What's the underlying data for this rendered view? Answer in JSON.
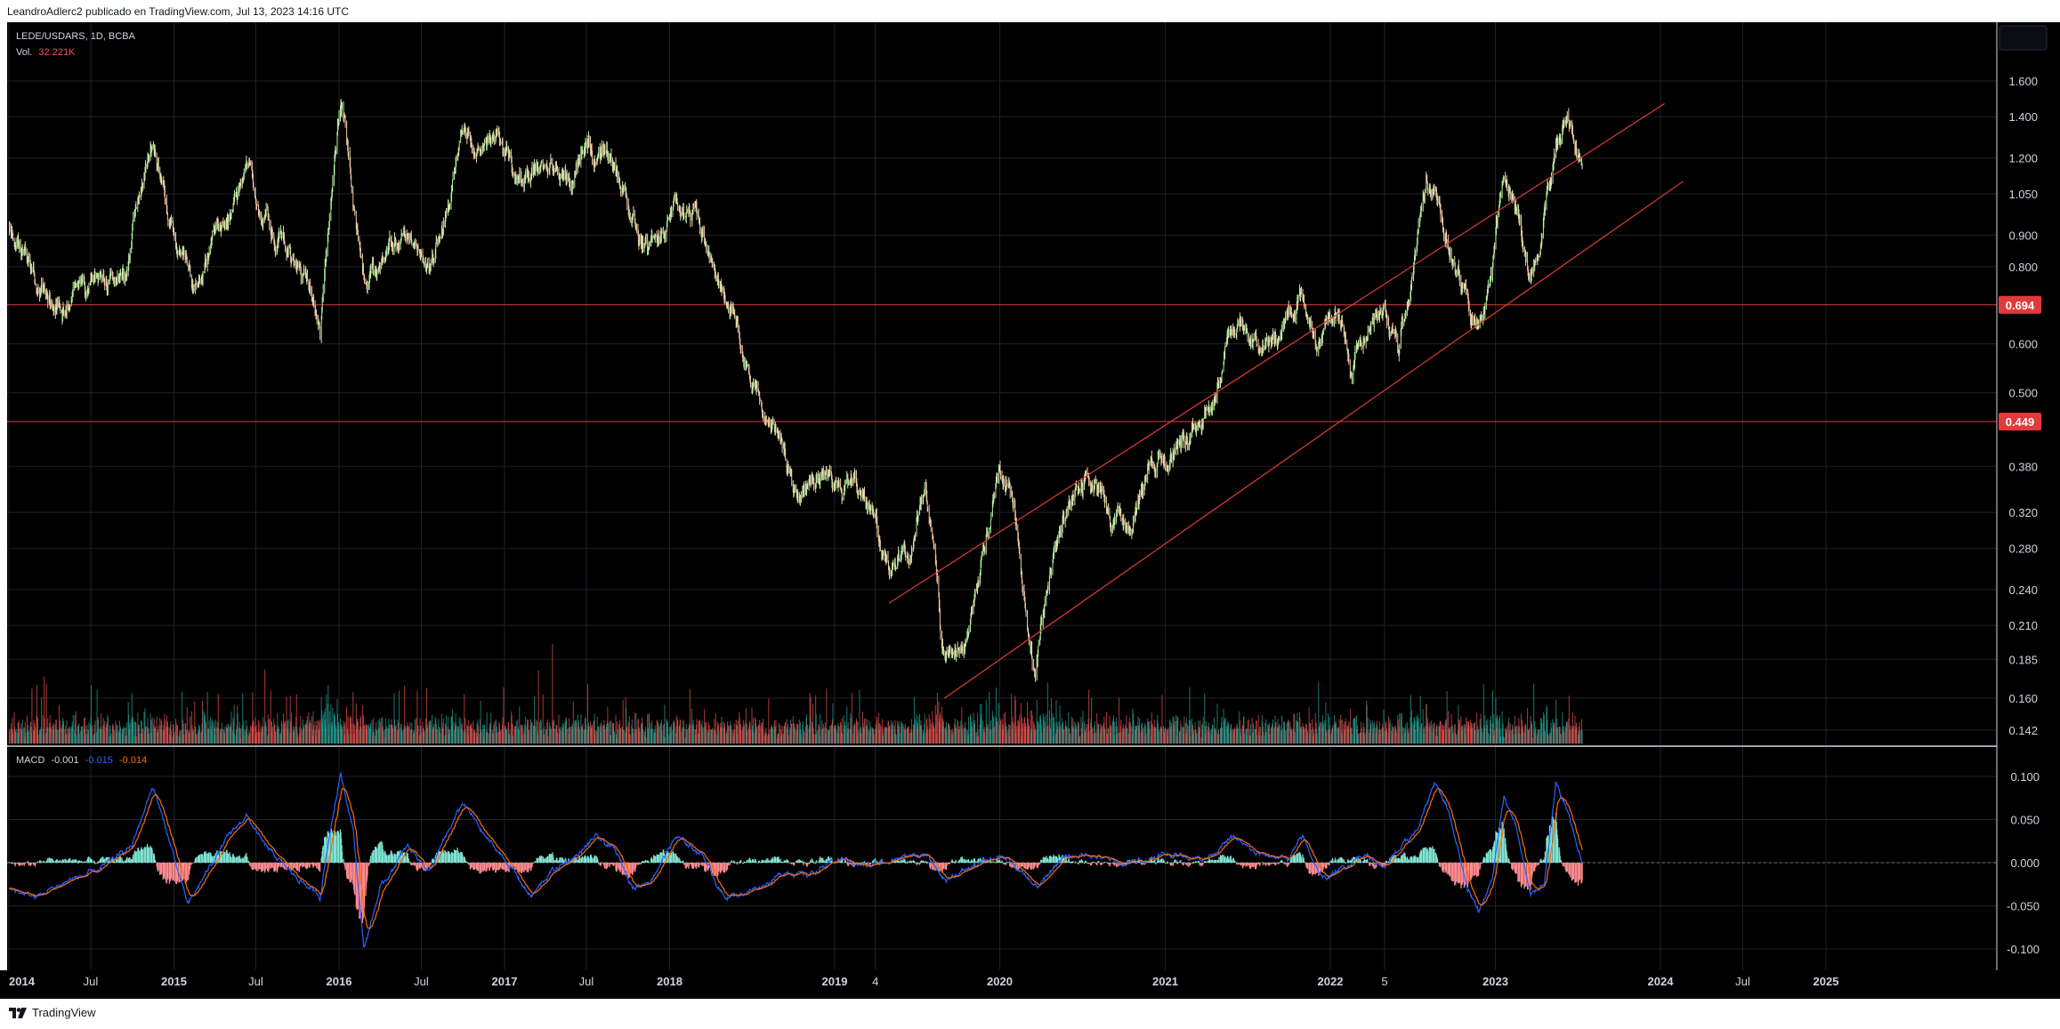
{
  "header": {
    "text": "LeandroAdlerc2 publicado en TradingView.com, Jul 13, 2023 14:16 UTC"
  },
  "legend": {
    "symbol": "LEDE/USDARS, 1D, BCBA",
    "vol_label": "Vol.",
    "vol_value": "32.221K",
    "macd_label": "MACD",
    "macd_value": "-0.001",
    "signal_value": "-0.015",
    "histogram_value": "-0.014"
  },
  "footer": {
    "brand": "TradingView"
  },
  "colors": {
    "background": "#000000",
    "grid": "#1f2129",
    "axis_text": "#d1d4dc",
    "candle_up": "#b9f2a5",
    "candle_down": "#f3c9a6",
    "volume_up": "#26a69a",
    "volume_down": "#ef5350",
    "level_line": "#e03a3a",
    "channel_line": "#e03a3a",
    "macd_line": "#2962ff",
    "signal_line": "#ff6d00",
    "hist_pos": "#7fe3d2",
    "hist_neg": "#ff8a8f",
    "vol_value_color": "#f7525f",
    "macd_value_color": "#d1d4dc",
    "signal_value_color": "#2962ff",
    "hist_value_color": "#ff6d00"
  },
  "chart_data": [
    {
      "type": "candlestick",
      "title": "LEDE/USDARS, 1D, BCBA",
      "y_scale": "log",
      "y_ticks": [
        "1.600",
        "1.400",
        "1.200",
        "1.050",
        "0.900",
        "0.800",
        "0.600",
        "0.500",
        "0.380",
        "0.320",
        "0.280",
        "0.240",
        "0.210",
        "0.185",
        "0.160",
        "0.142"
      ],
      "x_ticks": [
        "2014",
        "Jul",
        "2015",
        "Jul",
        "2016",
        "Jul",
        "2017",
        "Jul",
        "2018",
        "2019",
        "4",
        "2020",
        "2021",
        "2022",
        "5",
        "2023",
        "2024",
        "Jul",
        "2025"
      ],
      "x_tick_dates": [
        "2014-01-01",
        "2014-07-01",
        "2015-01-01",
        "2015-07-01",
        "2016-01-01",
        "2016-07-01",
        "2017-01-01",
        "2017-07-01",
        "2018-01-01",
        "2019-01-01",
        "2019-04-01",
        "2020-01-01",
        "2021-01-01",
        "2022-01-01",
        "2022-05-01",
        "2023-01-01",
        "2024-01-01",
        "2024-07-01",
        "2025-01-01"
      ],
      "price_path": [
        [
          "2014-01-02",
          0.92
        ],
        [
          "2014-03-01",
          0.74
        ],
        [
          "2014-05-01",
          0.68
        ],
        [
          "2014-07-15",
          0.77
        ],
        [
          "2014-09-15",
          0.76
        ],
        [
          "2014-11-10",
          1.3
        ],
        [
          "2014-12-20",
          0.96
        ],
        [
          "2015-01-15",
          0.85
        ],
        [
          "2015-02-15",
          0.7
        ],
        [
          "2015-03-20",
          0.86
        ],
        [
          "2015-05-01",
          0.96
        ],
        [
          "2015-06-10",
          1.15
        ],
        [
          "2015-07-15",
          0.98
        ],
        [
          "2015-09-01",
          0.87
        ],
        [
          "2015-10-20",
          0.79
        ],
        [
          "2015-11-20",
          0.62
        ],
        [
          "2015-12-10",
          0.94
        ],
        [
          "2016-01-05",
          1.48
        ],
        [
          "2016-02-05",
          0.94
        ],
        [
          "2016-03-01",
          0.72
        ],
        [
          "2016-04-20",
          0.86
        ],
        [
          "2016-06-01",
          0.9
        ],
        [
          "2016-07-20",
          0.82
        ],
        [
          "2016-09-01",
          1.05
        ],
        [
          "2016-10-01",
          1.3
        ],
        [
          "2016-11-15",
          1.22
        ],
        [
          "2016-12-15",
          1.28
        ],
        [
          "2017-02-01",
          1.08
        ],
        [
          "2017-04-01",
          1.15
        ],
        [
          "2017-06-01",
          1.1
        ],
        [
          "2017-07-01",
          1.3
        ],
        [
          "2017-08-15",
          1.22
        ],
        [
          "2017-10-01",
          1.0
        ],
        [
          "2017-11-15",
          0.82
        ],
        [
          "2017-12-15",
          0.9
        ],
        [
          "2018-01-15",
          1.05
        ],
        [
          "2018-03-01",
          0.96
        ],
        [
          "2018-04-15",
          0.76
        ],
        [
          "2018-05-15",
          0.7
        ],
        [
          "2018-07-01",
          0.5
        ],
        [
          "2018-08-15",
          0.45
        ],
        [
          "2018-09-15",
          0.4
        ],
        [
          "2018-10-20",
          0.33
        ],
        [
          "2018-11-20",
          0.38
        ],
        [
          "2019-01-01",
          0.35
        ],
        [
          "2019-02-15",
          0.36
        ],
        [
          "2019-04-01",
          0.3
        ],
        [
          "2019-05-01",
          0.26
        ],
        [
          "2019-06-15",
          0.27
        ],
        [
          "2019-07-20",
          0.35
        ],
        [
          "2019-08-10",
          0.28
        ],
        [
          "2019-08-25",
          0.19
        ],
        [
          "2019-10-15",
          0.19
        ],
        [
          "2019-11-20",
          0.26
        ],
        [
          "2020-01-01",
          0.38
        ],
        [
          "2020-02-01",
          0.33
        ],
        [
          "2020-02-20",
          0.25
        ],
        [
          "2020-03-20",
          0.17
        ],
        [
          "2020-04-20",
          0.26
        ],
        [
          "2020-06-01",
          0.33
        ],
        [
          "2020-07-15",
          0.37
        ],
        [
          "2020-09-01",
          0.32
        ],
        [
          "2020-10-15",
          0.3
        ],
        [
          "2020-12-01",
          0.38
        ],
        [
          "2021-01-15",
          0.4
        ],
        [
          "2021-03-15",
          0.44
        ],
        [
          "2021-04-15",
          0.49
        ],
        [
          "2021-05-15",
          0.6
        ],
        [
          "2021-06-15",
          0.62
        ],
        [
          "2021-08-01",
          0.59
        ],
        [
          "2021-09-20",
          0.64
        ],
        [
          "2021-10-25",
          0.73
        ],
        [
          "2021-11-30",
          0.58
        ],
        [
          "2022-01-15",
          0.69
        ],
        [
          "2022-02-15",
          0.53
        ],
        [
          "2022-04-01",
          0.66
        ],
        [
          "2022-04-25",
          0.69
        ],
        [
          "2022-06-01",
          0.58
        ],
        [
          "2022-07-01",
          0.8
        ],
        [
          "2022-08-01",
          1.12
        ],
        [
          "2022-09-10",
          0.95
        ],
        [
          "2022-10-10",
          0.8
        ],
        [
          "2022-11-20",
          0.64
        ],
        [
          "2022-12-25",
          0.78
        ],
        [
          "2023-01-20",
          1.18
        ],
        [
          "2023-02-20",
          0.95
        ],
        [
          "2023-03-20",
          0.76
        ],
        [
          "2023-04-15",
          0.9
        ],
        [
          "2023-05-15",
          1.25
        ],
        [
          "2023-06-10",
          1.4
        ],
        [
          "2023-07-12",
          1.12
        ]
      ],
      "horizontal_levels": [
        {
          "price": 0.694,
          "label": "0.694"
        },
        {
          "price": 0.449,
          "label": "0.449"
        }
      ],
      "channel_lines": [
        {
          "from": [
            "2019-05-01",
            0.228
          ],
          "to": [
            "2024-01-10",
            1.47
          ]
        },
        {
          "from": [
            "2019-09-01",
            0.16
          ],
          "to": [
            "2024-02-20",
            1.1
          ]
        }
      ],
      "volume_series_name": "Vol.",
      "last_volume": "32.221K"
    },
    {
      "type": "macd",
      "title": "MACD",
      "y_ticks": [
        "0.100",
        "0.050",
        "0.000",
        "-0.050",
        "-0.100"
      ],
      "ylim": [
        -0.118,
        0.108
      ],
      "macd_path": [
        [
          "2014-01-02",
          -0.03
        ],
        [
          "2014-03-01",
          -0.04
        ],
        [
          "2014-05-15",
          -0.02
        ],
        [
          "2014-07-15",
          -0.01
        ],
        [
          "2014-10-01",
          0.02
        ],
        [
          "2014-11-15",
          0.09
        ],
        [
          "2014-12-25",
          0.02
        ],
        [
          "2015-02-01",
          -0.05
        ],
        [
          "2015-03-15",
          -0.01
        ],
        [
          "2015-05-01",
          0.03
        ],
        [
          "2015-06-10",
          0.055
        ],
        [
          "2015-07-20",
          0.02
        ],
        [
          "2015-09-15",
          -0.01
        ],
        [
          "2015-11-20",
          -0.04
        ],
        [
          "2015-12-10",
          0.03
        ],
        [
          "2016-01-05",
          0.105
        ],
        [
          "2016-02-01",
          0.04
        ],
        [
          "2016-02-25",
          -0.1
        ],
        [
          "2016-04-01",
          -0.03
        ],
        [
          "2016-06-01",
          0.02
        ],
        [
          "2016-07-20",
          -0.01
        ],
        [
          "2016-08-20",
          0.025
        ],
        [
          "2016-10-01",
          0.07
        ],
        [
          "2016-11-20",
          0.03
        ],
        [
          "2017-01-15",
          -0.005
        ],
        [
          "2017-03-01",
          -0.04
        ],
        [
          "2017-04-15",
          -0.01
        ],
        [
          "2017-06-15",
          0.01
        ],
        [
          "2017-07-20",
          0.03
        ],
        [
          "2017-09-01",
          0.015
        ],
        [
          "2017-10-15",
          -0.03
        ],
        [
          "2017-11-20",
          -0.02
        ],
        [
          "2018-01-15",
          0.03
        ],
        [
          "2018-03-15",
          0.01
        ],
        [
          "2018-05-01",
          -0.04
        ],
        [
          "2018-06-15",
          -0.035
        ],
        [
          "2018-08-01",
          -0.025
        ],
        [
          "2018-09-15",
          -0.01
        ],
        [
          "2018-11-01",
          -0.015
        ],
        [
          "2019-01-15",
          0.005
        ],
        [
          "2019-03-15",
          -0.005
        ],
        [
          "2019-05-15",
          0.005
        ],
        [
          "2019-07-20",
          0.01
        ],
        [
          "2019-09-01",
          -0.02
        ],
        [
          "2019-11-01",
          -0.005
        ],
        [
          "2020-01-05",
          0.01
        ],
        [
          "2020-03-25",
          -0.03
        ],
        [
          "2020-05-15",
          0.005
        ],
        [
          "2020-07-15",
          0.01
        ],
        [
          "2020-10-01",
          -0.002
        ],
        [
          "2021-01-01",
          0.01
        ],
        [
          "2021-04-01",
          0.005
        ],
        [
          "2021-06-01",
          0.03
        ],
        [
          "2021-07-20",
          0.01
        ],
        [
          "2021-10-01",
          0.005
        ],
        [
          "2021-11-01",
          0.03
        ],
        [
          "2021-12-15",
          -0.02
        ],
        [
          "2022-02-01",
          -0.005
        ],
        [
          "2022-03-15",
          0.01
        ],
        [
          "2022-05-01",
          -0.005
        ],
        [
          "2022-07-15",
          0.04
        ],
        [
          "2022-08-20",
          0.095
        ],
        [
          "2022-09-20",
          0.06
        ],
        [
          "2022-11-01",
          -0.03
        ],
        [
          "2022-11-25",
          -0.055
        ],
        [
          "2022-12-25",
          -0.02
        ],
        [
          "2023-01-20",
          0.075
        ],
        [
          "2023-02-15",
          0.045
        ],
        [
          "2023-03-20",
          -0.04
        ],
        [
          "2023-04-20",
          -0.02
        ],
        [
          "2023-05-15",
          0.09
        ],
        [
          "2023-06-10",
          0.06
        ],
        [
          "2023-07-12",
          -0.001
        ]
      ]
    }
  ]
}
